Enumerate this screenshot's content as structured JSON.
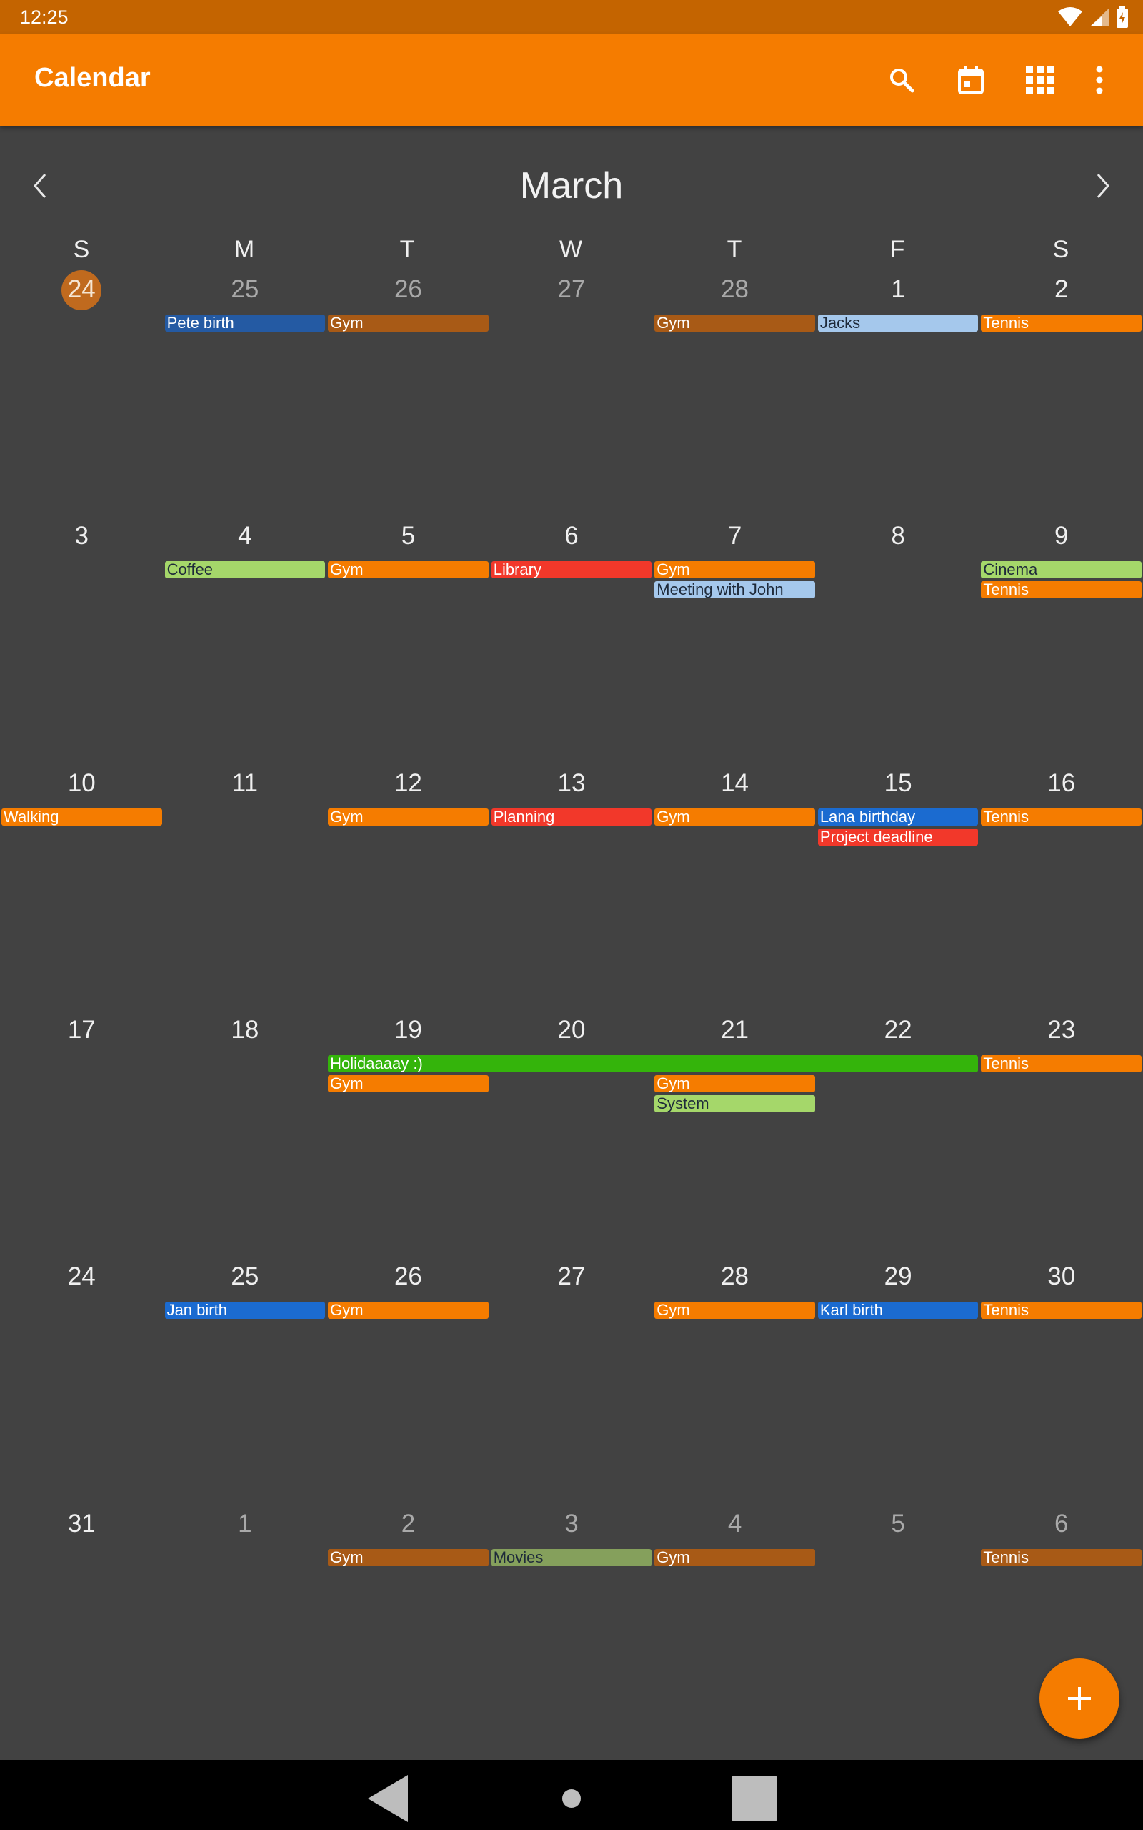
{
  "status_bar": {
    "time": "12:25"
  },
  "app_bar": {
    "title": "Calendar",
    "icons": [
      "search-icon",
      "calendar-today-icon",
      "view-grid-icon",
      "more-vert-icon"
    ]
  },
  "calendar": {
    "month": "March",
    "weekdays": [
      "S",
      "M",
      "T",
      "W",
      "T",
      "F",
      "S"
    ],
    "weeks": [
      {
        "days": [
          {
            "num": "24",
            "other": true,
            "today": true
          },
          {
            "num": "25",
            "other": true,
            "events": [
              {
                "label": "Pete birth",
                "color": "#245aa3"
              }
            ]
          },
          {
            "num": "26",
            "other": true,
            "events": [
              {
                "label": "Gym",
                "color": "#a85a16"
              }
            ]
          },
          {
            "num": "27",
            "other": true
          },
          {
            "num": "28",
            "other": true,
            "events": [
              {
                "label": "Gym",
                "color": "#a85a16"
              }
            ]
          },
          {
            "num": "1",
            "events": [
              {
                "label": "Jacks",
                "color": "#a5c8ec",
                "dark": true
              }
            ]
          },
          {
            "num": "2",
            "events": [
              {
                "label": "Tennis",
                "color": "#f57c00"
              }
            ]
          }
        ]
      },
      {
        "days": [
          {
            "num": "3"
          },
          {
            "num": "4",
            "events": [
              {
                "label": "Coffee",
                "color": "#a5d76a",
                "dark": true
              }
            ]
          },
          {
            "num": "5",
            "events": [
              {
                "label": "Gym",
                "color": "#f57c00"
              }
            ]
          },
          {
            "num": "6",
            "events": [
              {
                "label": "Library",
                "color": "#f2382a"
              }
            ]
          },
          {
            "num": "7",
            "events": [
              {
                "label": "Gym",
                "color": "#f57c00"
              },
              {
                "label": "Meeting with John",
                "color": "#a5c8ec",
                "dark": true
              }
            ]
          },
          {
            "num": "8"
          },
          {
            "num": "9",
            "events": [
              {
                "label": "Cinema",
                "color": "#a5d76a",
                "dark": true
              },
              {
                "label": "Tennis",
                "color": "#f57c00"
              }
            ]
          }
        ]
      },
      {
        "days": [
          {
            "num": "10",
            "events": [
              {
                "label": "Walking",
                "color": "#f57c00"
              }
            ]
          },
          {
            "num": "11"
          },
          {
            "num": "12",
            "events": [
              {
                "label": "Gym",
                "color": "#f57c00"
              }
            ]
          },
          {
            "num": "13",
            "events": [
              {
                "label": "Planning",
                "color": "#f2382a"
              }
            ]
          },
          {
            "num": "14",
            "events": [
              {
                "label": "Gym",
                "color": "#f57c00"
              }
            ]
          },
          {
            "num": "15",
            "events": [
              {
                "label": "Lana birthday",
                "color": "#1b6bd0"
              },
              {
                "label": "Project deadline",
                "color": "#f2382a"
              }
            ]
          },
          {
            "num": "16",
            "events": [
              {
                "label": "Tennis",
                "color": "#f57c00"
              }
            ]
          }
        ]
      },
      {
        "days": [
          {
            "num": "17"
          },
          {
            "num": "18"
          },
          {
            "num": "19",
            "events": [
              {
                "label": "Holidaaaay :)",
                "color": "#34b40b",
                "span": 4
              },
              {
                "label": "Gym",
                "color": "#f57c00"
              }
            ]
          },
          {
            "num": "20"
          },
          {
            "num": "21",
            "events": [
              {
                "label": "Gym",
                "color": "#f57c00",
                "slot": 1
              },
              {
                "label": "System",
                "color": "#a5d76a",
                "dark": true,
                "slot": 2
              }
            ]
          },
          {
            "num": "22"
          },
          {
            "num": "23",
            "events": [
              {
                "label": "Tennis",
                "color": "#f57c00"
              }
            ]
          }
        ]
      },
      {
        "days": [
          {
            "num": "24"
          },
          {
            "num": "25",
            "events": [
              {
                "label": "Jan birth",
                "color": "#1b6bd0"
              }
            ]
          },
          {
            "num": "26",
            "events": [
              {
                "label": "Gym",
                "color": "#f57c00"
              }
            ]
          },
          {
            "num": "27"
          },
          {
            "num": "28",
            "events": [
              {
                "label": "Gym",
                "color": "#f57c00"
              }
            ]
          },
          {
            "num": "29",
            "events": [
              {
                "label": "Karl birth",
                "color": "#1b6bd0"
              }
            ]
          },
          {
            "num": "30",
            "events": [
              {
                "label": "Tennis",
                "color": "#f57c00"
              }
            ]
          }
        ]
      },
      {
        "days": [
          {
            "num": "31"
          },
          {
            "num": "1",
            "other": true
          },
          {
            "num": "2",
            "other": true,
            "events": [
              {
                "label": "Gym",
                "color": "#a85a16"
              }
            ]
          },
          {
            "num": "3",
            "other": true,
            "events": [
              {
                "label": "Movies",
                "color": "#85a05c",
                "dark": true
              }
            ]
          },
          {
            "num": "4",
            "other": true,
            "events": [
              {
                "label": "Gym",
                "color": "#a85a16"
              }
            ]
          },
          {
            "num": "5",
            "other": true
          },
          {
            "num": "6",
            "other": true,
            "events": [
              {
                "label": "Tennis",
                "color": "#a85a16"
              }
            ]
          }
        ]
      }
    ]
  },
  "fab": {
    "icon": "plus-icon"
  },
  "nav_bar": {
    "icons": [
      "back-icon",
      "home-icon",
      "recents-icon"
    ]
  }
}
